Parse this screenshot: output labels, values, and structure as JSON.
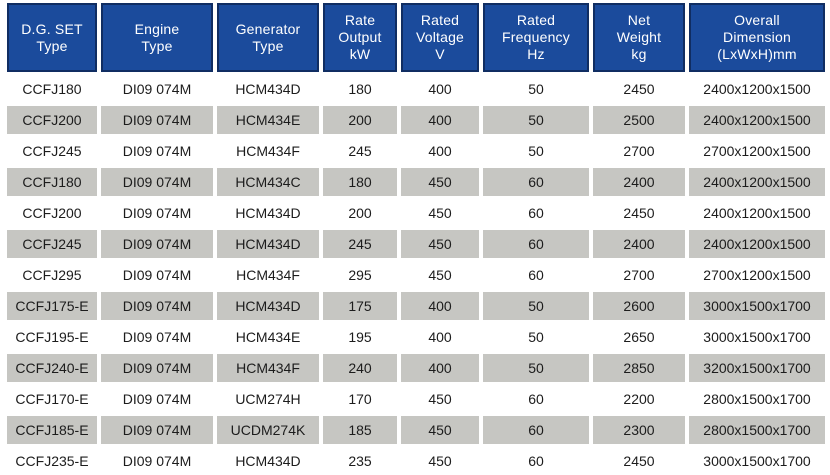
{
  "colors": {
    "header_bg": "#1b4b9c",
    "header_border": "#102d62",
    "header_text": "#ffffff",
    "row_alt_bg": "#c6c6c2",
    "row_bg": "#ffffff",
    "body_text": "#1c1c1c"
  },
  "table": {
    "columns": [
      "D.G. SET\nType",
      "Engine\nType",
      "Generator\nType",
      "Rate\nOutput\nkW",
      "Rated\nVoltage\nV",
      "Rated\nFrequency\nHz",
      "Net\nWeight\nkg",
      "Overall\nDimension\n(LxWxH)mm"
    ],
    "rows": [
      [
        "CCFJ180",
        "DI09 074M",
        "HCM434D",
        "180",
        "400",
        "50",
        "2450",
        "2400x1200x1500"
      ],
      [
        "CCFJ200",
        "DI09 074M",
        "HCM434E",
        "200",
        "400",
        "50",
        "2500",
        "2400x1200x1500"
      ],
      [
        "CCFJ245",
        "DI09 074M",
        "HCM434F",
        "245",
        "400",
        "50",
        "2700",
        "2700x1200x1500"
      ],
      [
        "CCFJ180",
        "DI09 074M",
        "HCM434C",
        "180",
        "450",
        "60",
        "2400",
        "2400x1200x1500"
      ],
      [
        "CCFJ200",
        "DI09 074M",
        "HCM434D",
        "200",
        "450",
        "60",
        "2450",
        "2400x1200x1500"
      ],
      [
        "CCFJ245",
        "DI09 074M",
        "HCM434D",
        "245",
        "450",
        "60",
        "2400",
        "2400x1200x1500"
      ],
      [
        "CCFJ295",
        "DI09 074M",
        "HCM434F",
        "295",
        "450",
        "60",
        "2700",
        "2700x1200x1500"
      ],
      [
        "CCFJ175-E",
        "DI09 074M",
        "HCM434D",
        "175",
        "400",
        "50",
        "2600",
        "3000x1500x1700"
      ],
      [
        "CCFJ195-E",
        "DI09 074M",
        "HCM434E",
        "195",
        "400",
        "50",
        "2650",
        "3000x1500x1700"
      ],
      [
        "CCFJ240-E",
        "DI09 074M",
        "HCM434F",
        "240",
        "400",
        "50",
        "2850",
        "3200x1500x1700"
      ],
      [
        "CCFJ170-E",
        "DI09 074M",
        "UCM274H",
        "170",
        "450",
        "60",
        "2200",
        "2800x1500x1700"
      ],
      [
        "CCFJ185-E",
        "DI09 074M",
        "UCDM274K",
        "185",
        "450",
        "60",
        "2300",
        "2800x1500x1700"
      ],
      [
        "CCFJ235-E",
        "DI09 074M",
        "HCM434D",
        "235",
        "450",
        "60",
        "2450",
        "3000x1500x1700"
      ]
    ]
  }
}
